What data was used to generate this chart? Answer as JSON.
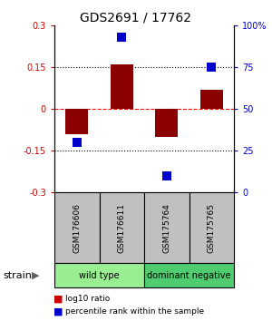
{
  "title": "GDS2691 / 17762",
  "samples": [
    "GSM176606",
    "GSM176611",
    "GSM175764",
    "GSM175765"
  ],
  "log10_ratio": [
    -0.09,
    0.16,
    -0.1,
    0.07
  ],
  "percentile_rank": [
    30,
    93,
    10,
    75
  ],
  "groups": [
    {
      "label": "wild type",
      "start": 0,
      "end": 2,
      "color": "#98EE90"
    },
    {
      "label": "dominant negative",
      "start": 2,
      "end": 4,
      "color": "#50CC70"
    }
  ],
  "group_label": "strain",
  "ylim_left": [
    -0.3,
    0.3
  ],
  "ylim_right": [
    0,
    100
  ],
  "yticks_left": [
    -0.3,
    -0.15,
    0,
    0.15,
    0.3
  ],
  "yticks_right": [
    0,
    25,
    50,
    75,
    100
  ],
  "ytick_labels_right": [
    "0",
    "25",
    "50",
    "75",
    "100%"
  ],
  "bar_color": "#8B0000",
  "point_color": "#0000CC",
  "bar_width": 0.5,
  "point_size": 45,
  "left_tick_color": "#CC0000",
  "right_tick_color": "#0000CC",
  "sample_box_color": "#C0C0C0",
  "legend_bar_color": "#CC0000",
  "legend_pt_color": "#0000CC"
}
